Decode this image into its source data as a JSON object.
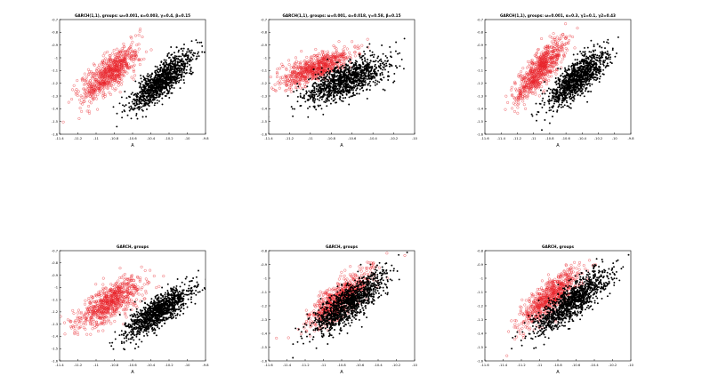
{
  "chart_data": [
    {
      "type": "scatter",
      "title": "GARCH(1,1), groups: ω=0.001, α=0.003, γ=0.4, β=0.15",
      "xlabel": "A",
      "ylabel": "B",
      "xlim": [
        -11.4,
        -9.8
      ],
      "ylim": [
        -1.6,
        -0.7
      ],
      "xticks": [
        "-11.4",
        "-11.2",
        "-11",
        "-10.8",
        "-10.6",
        "-10.4",
        "-10.2",
        "-10",
        "-9.8"
      ],
      "yticks": [
        "-0.7",
        "-0.8",
        "-0.9",
        "-1",
        "-1.1",
        "-1.2",
        "-1.3",
        "-1.4",
        "-1.5",
        "-1.6"
      ],
      "series": [
        {
          "color": "#e8232a",
          "marker": "open-circle",
          "center": [
            -10.85,
            -1.12
          ],
          "spread": [
            0.16,
            0.11
          ],
          "corr": 0.78,
          "n": 750
        },
        {
          "color": "#000000",
          "marker": "filled-dot",
          "center": [
            -10.28,
            -1.18
          ],
          "spread": [
            0.17,
            0.11
          ],
          "corr": 0.82,
          "n": 1200
        }
      ],
      "grid": false
    },
    {
      "type": "scatter",
      "title": "GARCH(1,1), groups: ω=0.001, α=0.018, γ=0.58, β=0.15",
      "xlabel": "A",
      "ylabel": "B",
      "xlim": [
        -11.4,
        -10
      ],
      "ylim": [
        -1.6,
        -0.7
      ],
      "xticks": [
        "-11.4",
        "-11.2",
        "-11",
        "-10.8",
        "-10.6",
        "-10.4",
        "-10.2",
        "-10"
      ],
      "yticks": [
        "-0.7",
        "-0.8",
        "-0.9",
        "-1",
        "-1.1",
        "-1.2",
        "-1.3",
        "-1.4",
        "-1.5",
        "-1.6"
      ],
      "series": [
        {
          "color": "#e8232a",
          "marker": "open-circle",
          "center": [
            -10.95,
            -1.08
          ],
          "spread": [
            0.17,
            0.07
          ],
          "corr": 0.7,
          "n": 750
        },
        {
          "color": "#000000",
          "marker": "filled-dot",
          "center": [
            -10.65,
            -1.17
          ],
          "spread": [
            0.2,
            0.09
          ],
          "corr": 0.65,
          "n": 1200
        }
      ],
      "grid": false
    },
    {
      "type": "scatter",
      "title": "GARCH(1,1), groups: ω=0.001, α=0.3, γ1=0.1, γ2=0.43",
      "xlabel": "A",
      "ylabel": "B",
      "xlim": [
        -11.6,
        -9.8
      ],
      "ylim": [
        -1.6,
        -0.7
      ],
      "xticks": [
        "-11.6",
        "-11.4",
        "-11.2",
        "-11",
        "-10.8",
        "-10.6",
        "-10.4",
        "-10.2",
        "-10",
        "-9.8"
      ],
      "yticks": [
        "-0.7",
        "-0.8",
        "-0.9",
        "-1",
        "-1.1",
        "-1.2",
        "-1.3",
        "-1.4",
        "-1.5",
        "-1.6"
      ],
      "series": [
        {
          "color": "#e8232a",
          "marker": "open-circle",
          "center": [
            -10.92,
            -1.1
          ],
          "spread": [
            0.15,
            0.12
          ],
          "corr": 0.82,
          "n": 750
        },
        {
          "color": "#000000",
          "marker": "filled-dot",
          "center": [
            -10.45,
            -1.16
          ],
          "spread": [
            0.18,
            0.11
          ],
          "corr": 0.78,
          "n": 1200
        }
      ],
      "grid": false
    },
    {
      "type": "scatter",
      "title": "GARCH, groups",
      "xlabel": "A",
      "ylabel": "B",
      "xlim": [
        -11.4,
        -9.8
      ],
      "ylim": [
        -1.6,
        -0.7
      ],
      "xticks": [
        "-11.4",
        "-11.2",
        "-11",
        "-10.8",
        "-10.6",
        "-10.4",
        "-10.2",
        "-10",
        "-9.8"
      ],
      "yticks": [
        "-0.7",
        "-0.8",
        "-0.9",
        "-1",
        "-1.1",
        "-1.2",
        "-1.3",
        "-1.4",
        "-1.5",
        "-1.6"
      ],
      "series": [
        {
          "color": "#e8232a",
          "marker": "open-circle",
          "center": [
            -10.85,
            -1.12
          ],
          "spread": [
            0.18,
            0.1
          ],
          "corr": 0.72,
          "n": 750
        },
        {
          "color": "#000000",
          "marker": "filled-dot",
          "center": [
            -10.32,
            -1.2
          ],
          "spread": [
            0.18,
            0.1
          ],
          "corr": 0.8,
          "n": 1200
        }
      ],
      "grid": false
    },
    {
      "type": "scatter",
      "title": "GARCH, groups",
      "xlabel": "A",
      "ylabel": "B",
      "xlim": [
        -11.6,
        -10
      ],
      "ylim": [
        -1.6,
        -0.8
      ],
      "xticks": [
        "-11.6",
        "-11.4",
        "-11.2",
        "-11",
        "-10.8",
        "-10.6",
        "-10.4",
        "-10.2",
        "-10"
      ],
      "yticks": [
        "-0.8",
        "-0.9",
        "-1",
        "-1.1",
        "-1.2",
        "-1.3",
        "-1.4",
        "-1.5",
        "-1.6"
      ],
      "series": [
        {
          "color": "#e8232a",
          "marker": "open-circle",
          "center": [
            -10.82,
            -1.15
          ],
          "spread": [
            0.17,
            0.1
          ],
          "corr": 0.8,
          "n": 750
        },
        {
          "color": "#000000",
          "marker": "filled-dot",
          "center": [
            -10.72,
            -1.18
          ],
          "spread": [
            0.2,
            0.11
          ],
          "corr": 0.82,
          "n": 1200
        }
      ],
      "grid": false
    },
    {
      "type": "scatter",
      "title": "GARCH, groups",
      "xlabel": "A",
      "ylabel": "B",
      "xlim": [
        -11.6,
        -10
      ],
      "ylim": [
        -1.6,
        -0.8
      ],
      "xticks": [
        "-11.6",
        "-11.4",
        "-11.2",
        "-11",
        "-10.8",
        "-10.6",
        "-10.4",
        "-10.2",
        "-10"
      ],
      "yticks": [
        "-0.8",
        "-0.9",
        "-1",
        "-1.1",
        "-1.2",
        "-1.3",
        "-1.4",
        "-1.5",
        "-1.6"
      ],
      "series": [
        {
          "color": "#e8232a",
          "marker": "open-circle",
          "center": [
            -10.88,
            -1.13
          ],
          "spread": [
            0.16,
            0.1
          ],
          "corr": 0.8,
          "n": 750
        },
        {
          "color": "#000000",
          "marker": "filled-dot",
          "center": [
            -10.65,
            -1.17
          ],
          "spread": [
            0.2,
            0.11
          ],
          "corr": 0.82,
          "n": 1200
        }
      ],
      "grid": false
    }
  ]
}
